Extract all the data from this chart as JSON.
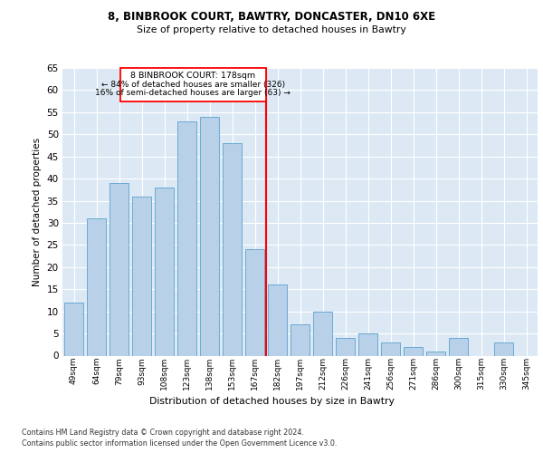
{
  "title1": "8, BINBROOK COURT, BAWTRY, DONCASTER, DN10 6XE",
  "title2": "Size of property relative to detached houses in Bawtry",
  "xlabel": "Distribution of detached houses by size in Bawtry",
  "ylabel": "Number of detached properties",
  "categories": [
    "49sqm",
    "64sqm",
    "79sqm",
    "93sqm",
    "108sqm",
    "123sqm",
    "138sqm",
    "153sqm",
    "167sqm",
    "182sqm",
    "197sqm",
    "212sqm",
    "226sqm",
    "241sqm",
    "256sqm",
    "271sqm",
    "286sqm",
    "300sqm",
    "315sqm",
    "330sqm",
    "345sqm"
  ],
  "values": [
    12,
    31,
    39,
    36,
    38,
    53,
    54,
    48,
    24,
    16,
    7,
    10,
    4,
    5,
    3,
    2,
    1,
    4,
    0,
    3,
    0
  ],
  "bar_color": "#b8d0e8",
  "bar_edge_color": "#6aaad4",
  "annotation_line1": "8 BINBROOK COURT: 178sqm",
  "annotation_line2": "← 84% of detached houses are smaller (326)",
  "annotation_line3": "16% of semi-detached houses are larger (63) →",
  "ylim": [
    0,
    65
  ],
  "yticks": [
    0,
    5,
    10,
    15,
    20,
    25,
    30,
    35,
    40,
    45,
    50,
    55,
    60,
    65
  ],
  "background_color": "#dce9f5",
  "footer1": "Contains HM Land Registry data © Crown copyright and database right 2024.",
  "footer2": "Contains public sector information licensed under the Open Government Licence v3.0."
}
